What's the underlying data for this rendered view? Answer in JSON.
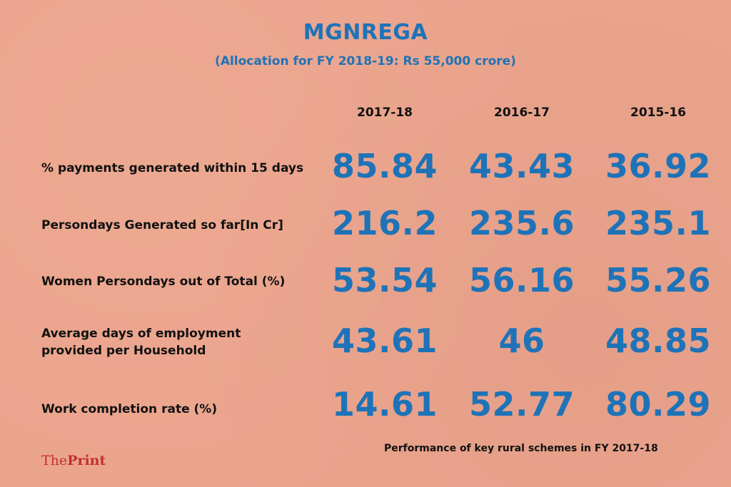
{
  "title": "MGNREGA",
  "subtitle": "(Allocation for FY 2018-19: Rs 55,000 crore)",
  "footnote": "Performance of key rural schemes in FY 2017-18",
  "logo": {
    "part1": "The",
    "part2": "Print"
  },
  "colors": {
    "background": "#ECA48C",
    "accent": "#1E73B8",
    "text": "#111111",
    "logo": "#C0312B"
  },
  "chart_data": {
    "type": "table",
    "columns": [
      "2017-18",
      "2016-17",
      "2015-16"
    ],
    "rows": [
      {
        "label": "% payments generated within 15 days",
        "values": [
          "85.84",
          "43.43",
          "36.92"
        ]
      },
      {
        "label": "Persondays Generated so far[In Cr]",
        "values": [
          "216.2",
          "235.6",
          "235.1"
        ]
      },
      {
        "label": "Women Persondays out of Total (%)",
        "values": [
          "53.54",
          "56.16",
          "55.26"
        ]
      },
      {
        "label": "Average days of employment provided per Household",
        "values": [
          "43.61",
          "46",
          "48.85"
        ]
      },
      {
        "label": "Work completion rate (%)",
        "values": [
          "14.61",
          "52.77",
          "80.29"
        ]
      }
    ]
  }
}
